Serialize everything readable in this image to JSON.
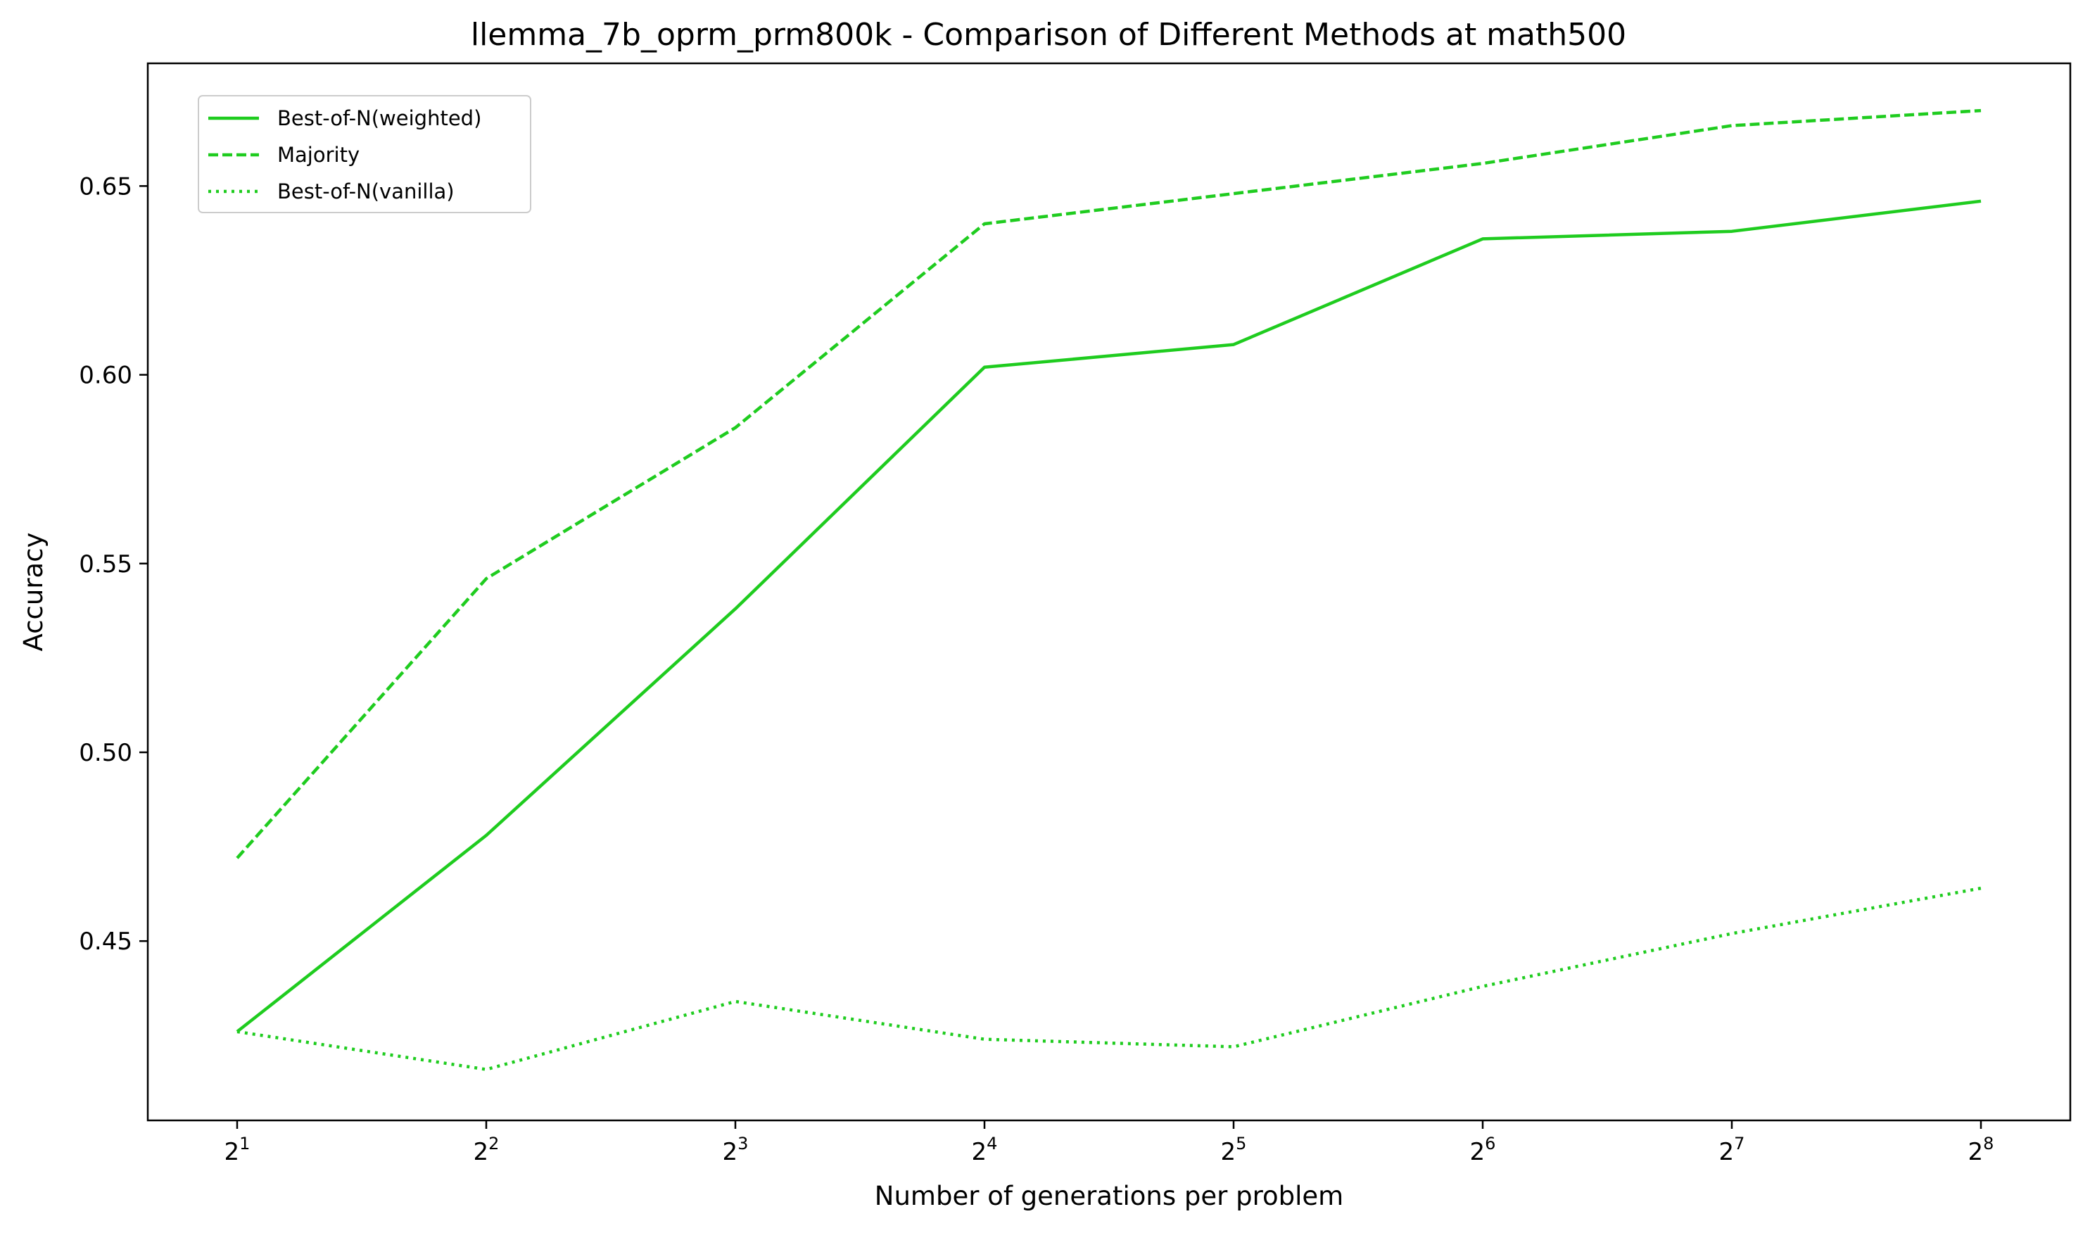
{
  "chart_data": {
    "type": "line",
    "title": "llemma_7b_oprm_prm800k - Comparison of Different Methods at math500",
    "xlabel": "Number of generations per problem",
    "ylabel": "Accuracy",
    "x": [
      2,
      4,
      8,
      16,
      32,
      64,
      128,
      256
    ],
    "x_scale": "log2",
    "x_tick_labels": [
      {
        "base": "2",
        "exp": "1"
      },
      {
        "base": "2",
        "exp": "2"
      },
      {
        "base": "2",
        "exp": "3"
      },
      {
        "base": "2",
        "exp": "4"
      },
      {
        "base": "2",
        "exp": "5"
      },
      {
        "base": "2",
        "exp": "6"
      },
      {
        "base": "2",
        "exp": "7"
      },
      {
        "base": "2",
        "exp": "8"
      }
    ],
    "y_ticks": [
      "0.45",
      "0.50",
      "0.55",
      "0.60",
      "0.65"
    ],
    "ylim": [
      0.4025,
      0.6825
    ],
    "grid": false,
    "legend_position": "top-left",
    "series": [
      {
        "name": "Best-of-N(weighted)",
        "style": "solid",
        "color": "#1fcc1f",
        "values": [
          0.426,
          0.478,
          0.538,
          0.602,
          0.608,
          0.636,
          0.638,
          0.646
        ]
      },
      {
        "name": "Majority",
        "style": "dashed",
        "color": "#1fcc1f",
        "values": [
          0.472,
          0.546,
          0.586,
          0.64,
          0.648,
          0.656,
          0.666,
          0.67
        ]
      },
      {
        "name": "Best-of-N(vanilla)",
        "style": "dotted",
        "color": "#1fcc1f",
        "values": [
          0.426,
          0.416,
          0.434,
          0.424,
          0.422,
          0.438,
          0.452,
          0.464
        ]
      }
    ]
  }
}
